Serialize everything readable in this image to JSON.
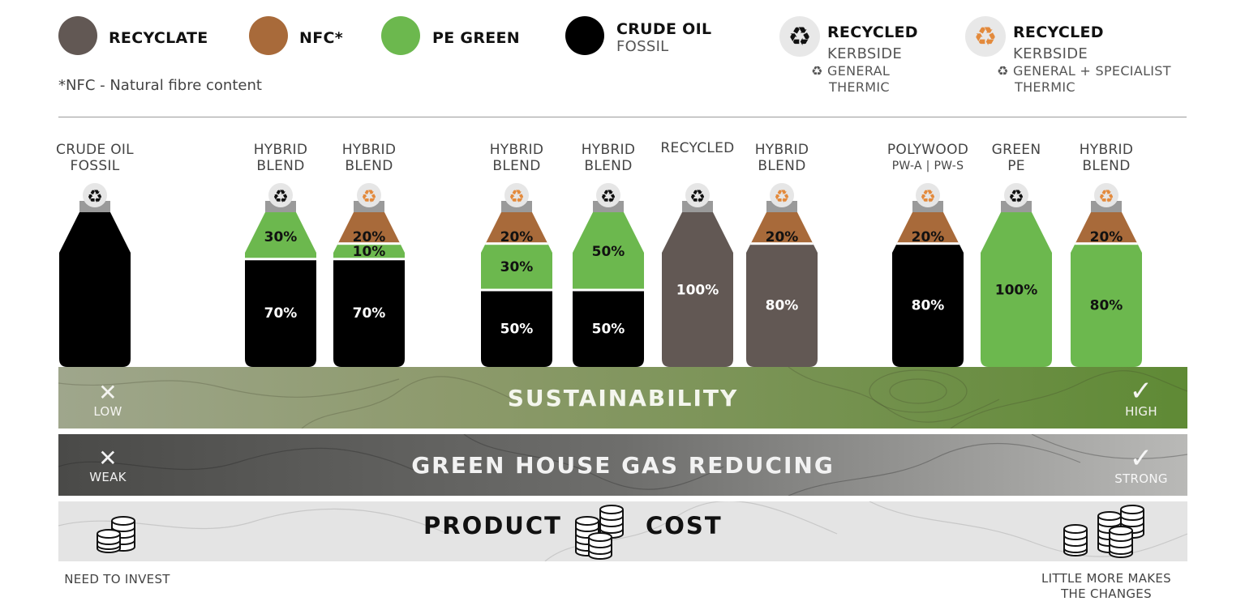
{
  "colors": {
    "recyclate": "#625854",
    "nfc": "#a86a3a",
    "pe_green": "#6cb84e",
    "crude_oil": "#000000",
    "recycled_general_symbol": "#111111",
    "recycled_specialist_symbol": "#e38a3c",
    "cap": "#9a9a9a"
  },
  "legend": {
    "recyclate": {
      "label": "RECYCLATE"
    },
    "nfc": {
      "label": "NFC*"
    },
    "pe_green": {
      "label": "PE GREEN"
    },
    "crude_oil": {
      "label": "CRUDE OIL",
      "sub": "FOSSIL"
    },
    "recycled_general": {
      "label": "RECYCLED",
      "sub": "KERBSIDE",
      "sub2_line1": "♻ GENERAL",
      "sub2_line2": "THERMIC",
      "icon": "recycle-black-icon"
    },
    "recycled_specialist": {
      "label": "RECYCLED",
      "sub": "KERBSIDE",
      "sub2_line1": "♻ GENERAL + SPECIALIST",
      "sub2_line2": "THERMIC",
      "icon": "recycle-orange-icon"
    },
    "footnote": "*NFC - Natural fibre content"
  },
  "bottles": [
    {
      "label_line1": "CRUDE OIL",
      "label_line2": "FOSSIL",
      "label_sub": "",
      "cap_icon": "recycle-black-icon",
      "layers": [
        {
          "material": "crude_oil",
          "percent": 100,
          "text": ""
        }
      ]
    },
    {
      "label_line1": "HYBRID",
      "label_line2": "BLEND",
      "label_sub": "",
      "cap_icon": "recycle-black-icon",
      "layers": [
        {
          "material": "pe_green",
          "percent": 30,
          "text": "30%"
        },
        {
          "material": "crude_oil",
          "percent": 70,
          "text": "70%"
        }
      ]
    },
    {
      "label_line1": "HYBRID",
      "label_line2": "BLEND",
      "label_sub": "",
      "cap_icon": "recycle-orange-icon",
      "layers": [
        {
          "material": "nfc",
          "percent": 20,
          "text": "20%"
        },
        {
          "material": "pe_green",
          "percent": 10,
          "text": "10%"
        },
        {
          "material": "crude_oil",
          "percent": 70,
          "text": "70%"
        }
      ]
    },
    {
      "label_line1": "HYBRID",
      "label_line2": "BLEND",
      "label_sub": "",
      "cap_icon": "recycle-orange-icon",
      "layers": [
        {
          "material": "nfc",
          "percent": 20,
          "text": "20%"
        },
        {
          "material": "pe_green",
          "percent": 30,
          "text": "30%"
        },
        {
          "material": "crude_oil",
          "percent": 50,
          "text": "50%"
        }
      ]
    },
    {
      "label_line1": "HYBRID",
      "label_line2": "BLEND",
      "label_sub": "",
      "cap_icon": "recycle-black-icon",
      "layers": [
        {
          "material": "pe_green",
          "percent": 50,
          "text": "50%"
        },
        {
          "material": "crude_oil",
          "percent": 50,
          "text": "50%"
        }
      ]
    },
    {
      "label_line1": "RECYCLED",
      "label_line2": "",
      "label_sub": "",
      "cap_icon": "recycle-black-icon",
      "layers": [
        {
          "material": "recyclate",
          "percent": 100,
          "text": "100%"
        }
      ]
    },
    {
      "label_line1": "HYBRID",
      "label_line2": "BLEND",
      "label_sub": "",
      "cap_icon": "recycle-orange-icon",
      "layers": [
        {
          "material": "nfc",
          "percent": 20,
          "text": "20%"
        },
        {
          "material": "recyclate",
          "percent": 80,
          "text": "80%"
        }
      ]
    },
    {
      "label_line1": "POLYWOOD",
      "label_line2": "",
      "label_sub": "PW-A | PW-S",
      "cap_icon": "recycle-orange-icon",
      "layers": [
        {
          "material": "nfc",
          "percent": 20,
          "text": "20%"
        },
        {
          "material": "crude_oil",
          "percent": 80,
          "text": "80%"
        }
      ]
    },
    {
      "label_line1": "GREEN",
      "label_line2": "PE",
      "label_sub": "",
      "cap_icon": "recycle-black-icon",
      "layers": [
        {
          "material": "pe_green",
          "percent": 100,
          "text": "100%"
        }
      ]
    },
    {
      "label_line1": "HYBRID",
      "label_line2": "BLEND",
      "label_sub": "",
      "cap_icon": "recycle-orange-icon",
      "layers": [
        {
          "material": "nfc",
          "percent": 20,
          "text": "20%"
        },
        {
          "material": "pe_green",
          "percent": 80,
          "text": "80%"
        }
      ]
    }
  ],
  "scales": {
    "sustainability": {
      "title": "SUSTAINABILITY",
      "low_mark": "✕",
      "low_label": "LOW",
      "high_mark": "✓",
      "high_label": "HIGH"
    },
    "ghg": {
      "title": "GREEN HOUSE GAS REDUCING",
      "low_mark": "✕",
      "low_label": "WEAK",
      "high_mark": "✓",
      "high_label": "STRONG"
    },
    "cost": {
      "title_left": "PRODUCT",
      "title_right": "COST",
      "low_caption": "NEED TO INVEST",
      "high_caption_line1": "LITTLE MORE MAKES",
      "high_caption_line2": "THE CHANGES"
    }
  }
}
